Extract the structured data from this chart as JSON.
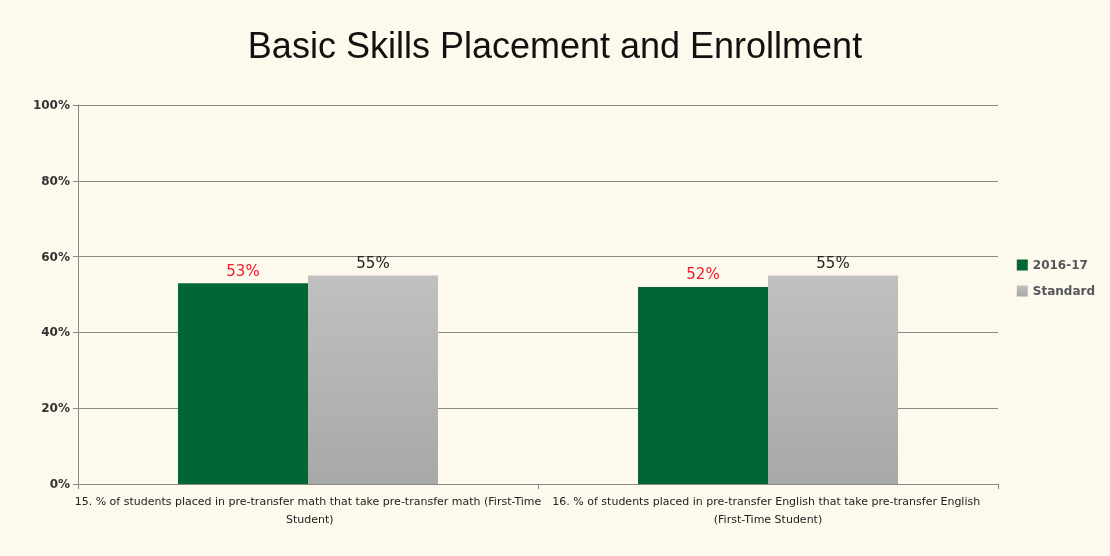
{
  "chart_data": {
    "type": "bar",
    "title": "Basic Skills Placement and Enrollment",
    "categories": [
      "15. % of students placed in pre-transfer math that take pre-transfer math (First-Time Student)",
      "16. % of students placed in pre-transfer English that take pre-transfer English (First-Time Student)"
    ],
    "series": [
      {
        "name": "2016-17",
        "color": "#006633",
        "values": [
          53,
          52
        ],
        "value_labels": [
          "53%",
          "52%"
        ]
      },
      {
        "name": "Standard",
        "color": "#c0c0c0",
        "values": [
          55,
          55
        ],
        "value_labels": [
          "55%",
          "55%"
        ]
      }
    ],
    "ylim": [
      0,
      100
    ],
    "yticks": [
      {
        "value": 0,
        "label": "0%"
      },
      {
        "value": 20,
        "label": "20%"
      },
      {
        "value": 40,
        "label": "40%"
      },
      {
        "value": 60,
        "label": "60%"
      },
      {
        "value": 80,
        "label": "80%"
      },
      {
        "value": 100,
        "label": "100%"
      }
    ],
    "grid": "y",
    "legend": "right"
  }
}
